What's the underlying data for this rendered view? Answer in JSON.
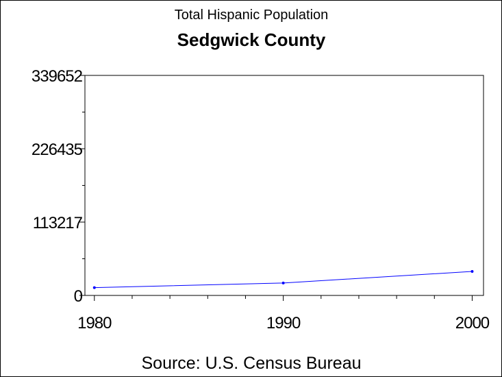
{
  "chart_data": {
    "type": "line",
    "title": "Total Hispanic Population",
    "subtitle": "Sedgwick County",
    "footnote": "Source: U.S. Census Bureau",
    "x": [
      1980,
      1990,
      2000
    ],
    "x_ticks": [
      "1980",
      "1990",
      "2000"
    ],
    "y_ticks": [
      "0",
      "113217",
      "226435",
      "339652"
    ],
    "ylim": [
      0,
      339652
    ],
    "xlim": [
      1979.5,
      2000.6
    ],
    "series": [
      {
        "values": [
          12000,
          19200,
          37000
        ],
        "color": "#0000ff"
      }
    ],
    "grid": false
  }
}
